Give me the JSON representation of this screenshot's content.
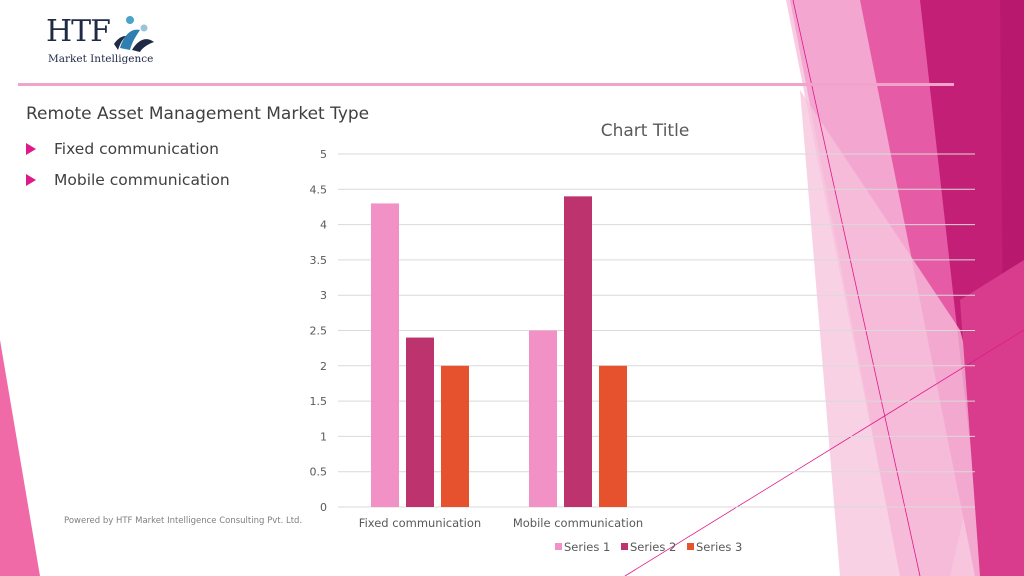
{
  "brand": {
    "logo_text": "HTF",
    "logo_subtitle": "Market Intelligence",
    "accent_color": "#e0198a"
  },
  "slide": {
    "title": "Remote Asset Management Market Type",
    "bullets": [
      {
        "label": "Fixed communication"
      },
      {
        "label": "Mobile communication"
      }
    ],
    "footer": "Powered by HTF Market Intelligence Consulting Pvt. Ltd."
  },
  "chart_data": {
    "type": "bar",
    "title": "Chart Title",
    "categories": [
      "Fixed communication",
      "Mobile communication"
    ],
    "series": [
      {
        "name": "Series 1",
        "values": [
          4.3,
          2.5
        ],
        "color": "#f191c6"
      },
      {
        "name": "Series 2",
        "values": [
          2.4,
          4.4
        ],
        "color": "#bc336d"
      },
      {
        "name": "Series 3",
        "values": [
          2,
          2
        ],
        "color": "#e6512e"
      }
    ],
    "ylim": [
      0,
      5
    ],
    "yticks": [
      "0",
      "0.5",
      "1",
      "1.5",
      "2",
      "2.5",
      "3",
      "3.5",
      "4",
      "4.5",
      "5"
    ],
    "grid": true,
    "legend": "bottom"
  }
}
